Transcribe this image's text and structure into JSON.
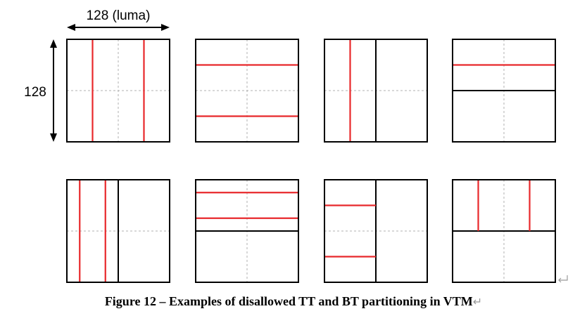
{
  "labels": {
    "width": "128 (luma)",
    "height": "128"
  },
  "caption": {
    "text": "Figure 12 – Examples of disallowed TT and BT partitioning in VTM",
    "return_mark": "↵"
  },
  "colors": {
    "split_line": "#e8282b",
    "boundary": "#000000",
    "grid": "#b0b0b0"
  },
  "blocks": [
    {
      "name": "vertical-tt",
      "black": [],
      "red": [
        [
          "v",
          0.25,
          0,
          1
        ],
        [
          "v",
          0.75,
          0,
          1
        ]
      ]
    },
    {
      "name": "horizontal-tt",
      "black": [],
      "red": [
        [
          "h",
          0.25,
          0,
          1
        ],
        [
          "h",
          0.75,
          0,
          1
        ]
      ]
    },
    {
      "name": "vertical-bt-then-vertical-bt",
      "black": [
        [
          "v",
          0.5,
          0,
          1
        ]
      ],
      "red": [
        [
          "v",
          0.25,
          0,
          1
        ]
      ]
    },
    {
      "name": "horizontal-bt-then-horizontal-bt",
      "black": [
        [
          "h",
          0.5,
          0,
          1
        ]
      ],
      "red": [
        [
          "h",
          0.25,
          0,
          1
        ]
      ]
    },
    {
      "name": "vertical-bt-then-vertical-tt",
      "black": [
        [
          "v",
          0.5,
          0,
          1
        ]
      ],
      "red": [
        [
          "v",
          0.125,
          0,
          1
        ],
        [
          "v",
          0.375,
          0,
          1
        ]
      ]
    },
    {
      "name": "horizontal-bt-then-horizontal-tt",
      "black": [
        [
          "h",
          0.5,
          0,
          1
        ]
      ],
      "red": [
        [
          "h",
          0.125,
          0,
          1
        ],
        [
          "h",
          0.375,
          0,
          1
        ]
      ]
    },
    {
      "name": "vertical-bt-then-horizontal-tt",
      "black": [
        [
          "v",
          0.5,
          0,
          1
        ]
      ],
      "red": [
        [
          "h",
          0.25,
          0,
          0.5
        ],
        [
          "h",
          0.75,
          0,
          0.5
        ]
      ]
    },
    {
      "name": "horizontal-bt-then-vertical-tt",
      "black": [
        [
          "h",
          0.5,
          0,
          1
        ]
      ],
      "red": [
        [
          "v",
          0.25,
          0,
          0.5
        ],
        [
          "v",
          0.75,
          0,
          0.5
        ]
      ]
    }
  ]
}
